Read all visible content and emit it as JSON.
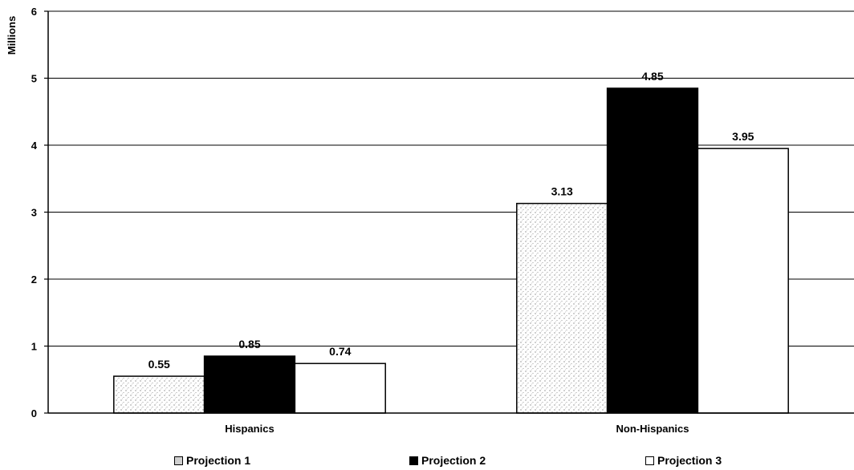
{
  "chart_data": {
    "type": "bar",
    "title": "",
    "xlabel": "",
    "ylabel": "Millions",
    "ylim": [
      0,
      6
    ],
    "yticks": [
      "0",
      "1",
      "2",
      "3",
      "4",
      "5",
      "6"
    ],
    "grid": true,
    "legend_position": "bottom",
    "categories": [
      "Hispanics",
      "Non-Hispanics"
    ],
    "series": [
      {
        "name": "Projection 1",
        "values": [
          0.55,
          3.13
        ],
        "labels": [
          "0.55",
          "3.13"
        ],
        "fill": "stippled-gray"
      },
      {
        "name": "Projection 2",
        "values": [
          0.85,
          4.85
        ],
        "labels": [
          "0.85",
          "4.85"
        ],
        "fill": "#000000"
      },
      {
        "name": "Projection 3",
        "values": [
          0.74,
          3.95
        ],
        "labels": [
          "0.74",
          "3.95"
        ],
        "fill": "#ffffff"
      }
    ]
  }
}
